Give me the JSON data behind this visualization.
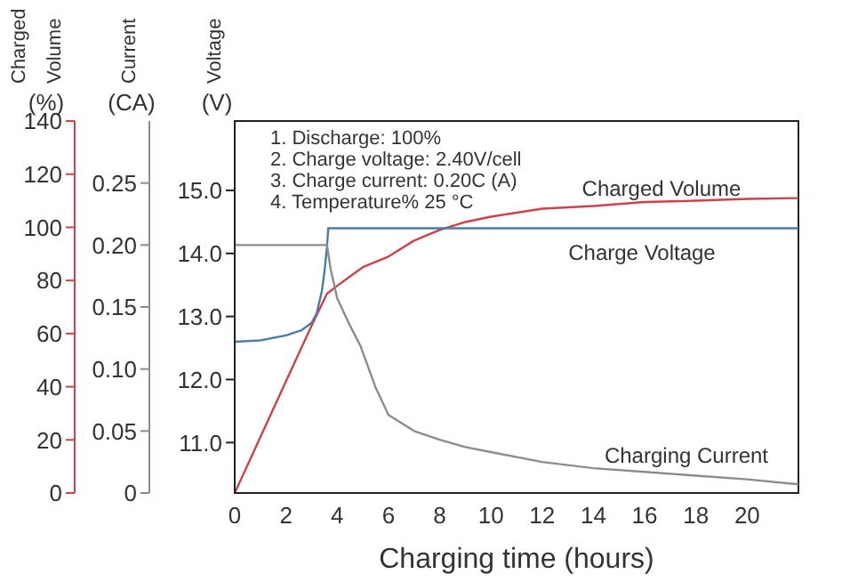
{
  "chart_data": {
    "type": "line",
    "xlabel": "Charging time (hours)",
    "ylabel": "Voltage (V)",
    "y2label": "Current (CA)",
    "y3label": "Charged Volume (%)",
    "annotations": [
      "1. Discharge: 100%",
      "2. Charge voltage: 2.40V/cell",
      "3. Charge current: 0.20C (A)",
      "4. Temperature% 25 °C"
    ],
    "xlim": [
      0,
      22
    ],
    "xticks": [
      0,
      2,
      4,
      6,
      8,
      10,
      12,
      14,
      16,
      18,
      20
    ],
    "ylim": [
      10.2,
      16.1
    ],
    "yticks": [
      {
        "value": 11,
        "label": "11.0"
      },
      {
        "value": 12,
        "label": "12.0"
      },
      {
        "value": 13,
        "label": "13.0"
      },
      {
        "value": 14,
        "label": "14.0"
      },
      {
        "value": 15,
        "label": "15.0"
      }
    ],
    "y2lim": [
      0,
      0.3
    ],
    "y2ticks": [
      0,
      0.05,
      {
        "value": 0.1,
        "label": "0.10"
      },
      0.15,
      {
        "value": 0.2,
        "label": "0.20"
      },
      0.25
    ],
    "y3lim": [
      0,
      140
    ],
    "y3ticks": [
      0,
      20,
      40,
      60,
      80,
      100,
      120,
      140
    ],
    "marker": "none",
    "line_style": "solid",
    "series": [
      {
        "name": "Charged Volume",
        "color": "#d0404a",
        "axis": "y3",
        "x": [
          0,
          1,
          2,
          3,
          3.6,
          4,
          5,
          6,
          7,
          8,
          9,
          10,
          12,
          14,
          16,
          18,
          20,
          22
        ],
        "values": [
          0,
          21,
          42,
          63,
          75,
          78,
          85,
          89,
          95,
          99,
          102,
          104,
          107,
          108,
          109.5,
          110,
          110.7,
          111
        ]
      },
      {
        "name": "Charge Voltage",
        "color": "#4a7ea8",
        "axis": "y",
        "x": [
          0,
          1,
          2,
          2.6,
          3,
          3.2,
          3.4,
          3.5,
          3.6,
          3.65,
          22
        ],
        "values": [
          12.6,
          12.62,
          12.7,
          12.78,
          12.9,
          13.05,
          13.4,
          13.7,
          14.1,
          14.4,
          14.4
        ]
      },
      {
        "name": "Charging Current",
        "color": "#8c8c8c",
        "axis": "y2",
        "x": [
          0,
          3.6,
          3.75,
          4,
          4.5,
          4.9,
          5.5,
          6,
          7,
          8,
          9,
          10,
          12,
          14,
          16,
          18,
          20,
          22
        ],
        "values": [
          0.2,
          0.2,
          0.18,
          0.157,
          0.135,
          0.119,
          0.085,
          0.063,
          0.05,
          0.043,
          0.037,
          0.033,
          0.025,
          0.02,
          0.017,
          0.014,
          0.011,
          0.007
        ]
      }
    ]
  }
}
